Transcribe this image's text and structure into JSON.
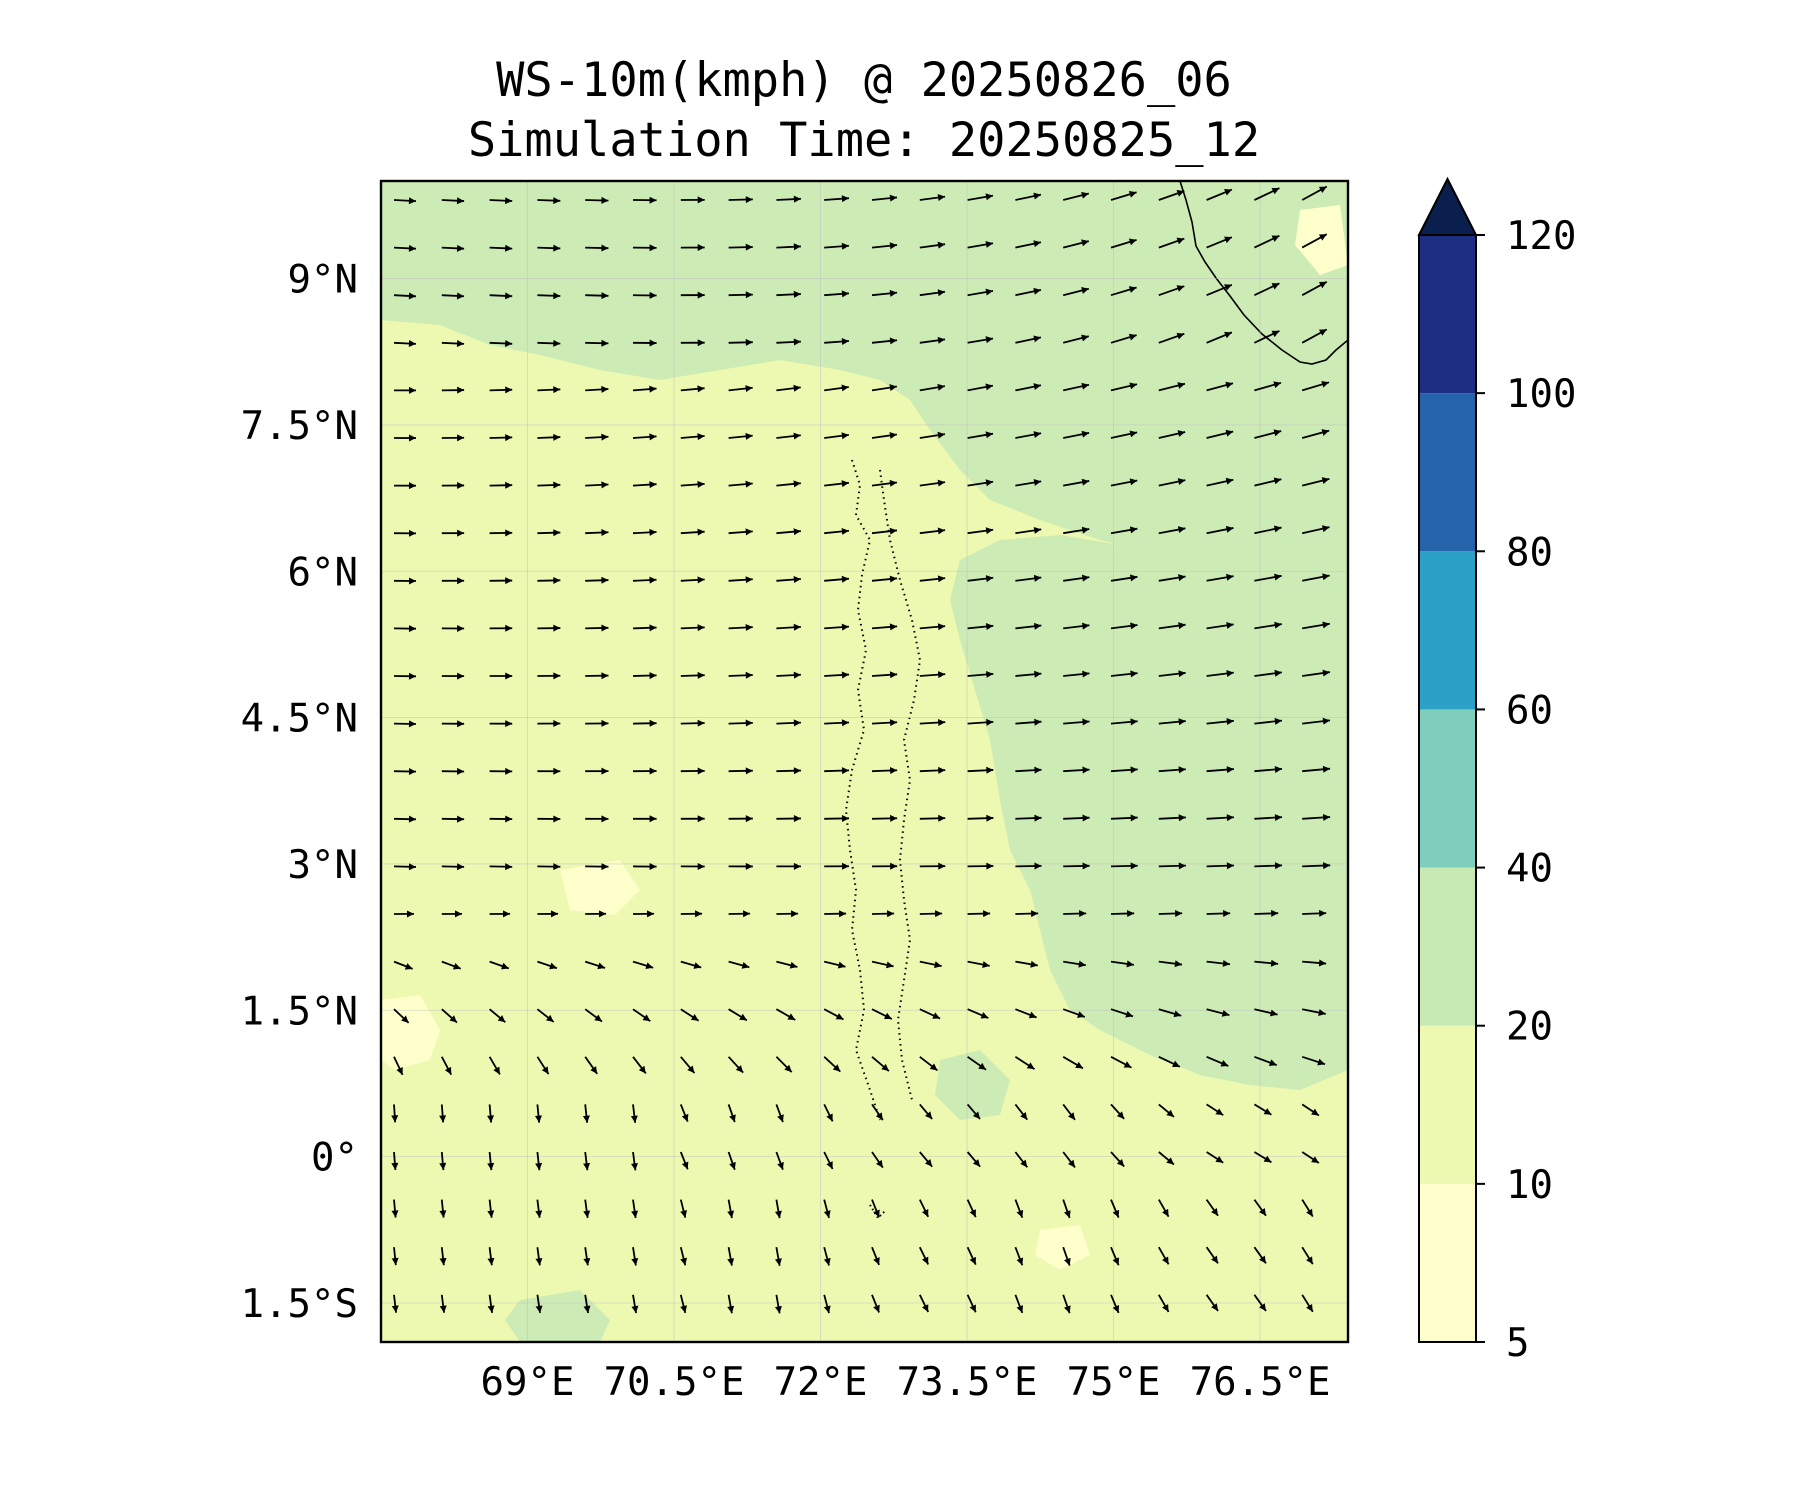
{
  "title": {
    "line1": "WS-10m(kmph) @ 20250826_06",
    "line2": "Simulation Time: 20250825_12"
  },
  "map": {
    "lon_range": [
      67.5,
      77.4
    ],
    "lat_range": [
      -1.9,
      10.0
    ],
    "lon_ticks": [
      {
        "value": 69.0,
        "label": "69°E"
      },
      {
        "value": 70.5,
        "label": "70.5°E"
      },
      {
        "value": 72.0,
        "label": "72°E"
      },
      {
        "value": 73.5,
        "label": "73.5°E"
      },
      {
        "value": 75.0,
        "label": "75°E"
      },
      {
        "value": 76.5,
        "label": "76.5°E"
      }
    ],
    "lat_ticks": [
      {
        "value": 9.0,
        "label": "9°N"
      },
      {
        "value": 7.5,
        "label": "7.5°N"
      },
      {
        "value": 6.0,
        "label": "6°N"
      },
      {
        "value": 4.5,
        "label": "4.5°N"
      },
      {
        "value": 3.0,
        "label": "3°N"
      },
      {
        "value": 1.5,
        "label": "1.5°N"
      },
      {
        "value": 0.0,
        "label": "0°"
      },
      {
        "value": -1.5,
        "label": "1.5°S"
      }
    ],
    "field_colors": {
      "light": "#edf8b1",
      "mid": "#cdebb4",
      "palest": "#ffffcc"
    }
  },
  "colorbar": {
    "levels": [
      5,
      10,
      20,
      40,
      60,
      80,
      100,
      120
    ],
    "tick_labels": [
      "5",
      "10",
      "20",
      "40",
      "60",
      "80",
      "100",
      "120"
    ],
    "colors": [
      "#ffffcc",
      "#edf8b1",
      "#c7e9b4",
      "#7fcdbb",
      "#2ca1c7",
      "#2564ab",
      "#1e2e83"
    ],
    "extend_color": "#0b1f4e",
    "extend": "max"
  }
}
